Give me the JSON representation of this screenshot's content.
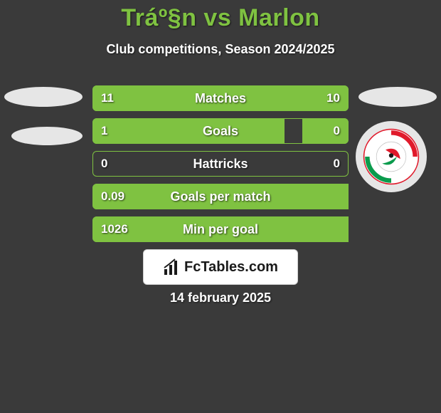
{
  "header": {
    "title": "Tráº§n vs Marlon",
    "subtitle": "Club competitions, Season 2024/2025"
  },
  "colors": {
    "accent": "#7fc241",
    "background": "#3a3a3a",
    "text": "#ffffff",
    "panel_bg": "#ffffff",
    "panel_border": "#d0d0d0",
    "oval_bg": "#e6e6e6"
  },
  "bars": {
    "total_width": 360,
    "rows": [
      {
        "label": "Matches",
        "left": "11",
        "right": "10",
        "left_frac": 0.52,
        "right_frac": 0.48
      },
      {
        "label": "Goals",
        "left": "1",
        "right": "0",
        "left_frac": 0.75,
        "right_frac": 0.18
      },
      {
        "label": "Hattricks",
        "left": "0",
        "right": "0",
        "left_frac": 0.0,
        "right_frac": 0.0
      },
      {
        "label": "Goals per match",
        "left": "0.09",
        "right": "",
        "left_frac": 1.0,
        "right_frac": 0.0
      },
      {
        "label": "Min per goal",
        "left": "1026",
        "right": "",
        "left_frac": 1.0,
        "right_frac": 0.0
      }
    ]
  },
  "footer": {
    "brand": "FcTables.com",
    "date": "14 february 2025"
  },
  "logo": {
    "name": "ho-chi-minh-club-logo"
  }
}
